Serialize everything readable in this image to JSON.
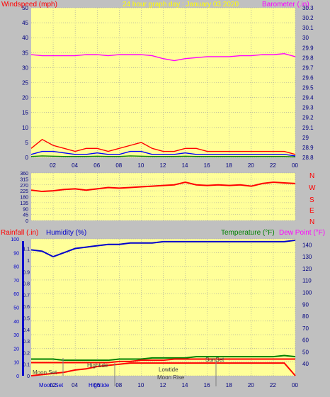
{
  "header": {
    "left_title": "Windspeed (mph)",
    "center_title": "24 hour graph day : January 03 2020",
    "right_title": "Barometer (.in)"
  },
  "wind_panel_labels": {
    "direction_letters": [
      "N",
      "W",
      "S",
      "E",
      "N"
    ]
  },
  "bottom_panel_titles": {
    "rainfall": "Rainfall (.in)",
    "humidity": "Humidity (%)",
    "temperature": "Temperature (°F)",
    "dewpoint": "Dew Point (°F)"
  },
  "event_labels": {
    "moon_set": "Moon Set",
    "hightide_1": "Hightide",
    "hightide_2": "Hightide",
    "lowtide": "Lowtide",
    "moon_rise": "Moon Rise",
    "sunset": "SunSet"
  },
  "colors": {
    "plot_bg": "#ffff99",
    "page_bg": "#c0c0c0",
    "wind": "#ff0000",
    "gust": "#0000ff",
    "green_series": "#008000",
    "barometer": "#ff00ff",
    "humidity": "#0000cc",
    "temperature": "#008000",
    "dewpoint": "#ff0000",
    "rain": "#ff0000",
    "title_accent": "#ffff00",
    "left_title": "#ff0000",
    "right_title": "#ff00ff"
  },
  "x_ticks": [
    "02",
    "04",
    "06",
    "08",
    "10",
    "12",
    "14",
    "16",
    "18",
    "20",
    "22",
    "00"
  ],
  "chart_data": [
    {
      "type": "line",
      "title": "24 hour graph day : January 03 2020",
      "ylabel": "Windspeed (mph)",
      "y2label": "Barometer (.in)",
      "ylim": [
        0,
        50
      ],
      "yticks": [
        0,
        5,
        10,
        15,
        20,
        25,
        30,
        35,
        40,
        45,
        50
      ],
      "y2lim": [
        28.8,
        30.3
      ],
      "y2ticks": [
        "28.8",
        "28.9",
        "29",
        "29.1",
        "29.2",
        "29.3",
        "29.4",
        "29.5",
        "29.6",
        "29.7",
        "29.8",
        "29.9",
        "30",
        "30.1",
        "30.2",
        "30.3"
      ],
      "x": [
        0,
        1,
        2,
        3,
        4,
        5,
        6,
        7,
        8,
        9,
        10,
        11,
        12,
        13,
        14,
        15,
        16,
        17,
        18,
        19,
        20,
        21,
        22,
        23,
        24
      ],
      "series": [
        {
          "values": [
            3,
            6,
            4,
            3,
            2,
            3,
            3,
            2,
            3,
            4,
            5,
            3,
            2,
            2,
            3,
            3,
            2,
            2,
            2,
            2,
            2,
            2,
            2,
            2,
            1
          ]
        },
        {
          "values": [
            1,
            2,
            2,
            1.5,
            1,
            1,
            1.5,
            1,
            1,
            2,
            2,
            1,
            1,
            1,
            1.5,
            1,
            1,
            1,
            1,
            1,
            1,
            1,
            1,
            1,
            0.5
          ]
        },
        {
          "values": [
            0.3,
            0.5,
            0.4,
            0.3,
            0.3,
            0.3,
            0.4,
            0.3,
            0.3,
            0.5,
            0.4,
            0.3,
            0.3,
            0.3,
            0.4,
            0.3,
            0.3,
            0.3,
            0.3,
            0.3,
            0.3,
            0.3,
            0.3,
            0.3,
            0.2
          ]
        },
        {
          "axis": "y2",
          "values": [
            29.83,
            29.82,
            29.82,
            29.82,
            29.82,
            29.83,
            29.83,
            29.82,
            29.83,
            29.83,
            29.83,
            29.82,
            29.79,
            29.77,
            29.79,
            29.8,
            29.81,
            29.81,
            29.81,
            29.82,
            29.82,
            29.83,
            29.83,
            29.84,
            29.81
          ]
        }
      ]
    },
    {
      "type": "scatter",
      "ylabel": "",
      "ylim": [
        0,
        360
      ],
      "yticks": [
        0,
        45,
        90,
        135,
        180,
        225,
        270,
        315,
        360
      ],
      "x": [
        0,
        1,
        2,
        3,
        4,
        5,
        6,
        7,
        8,
        9,
        10,
        11,
        12,
        13,
        14,
        15,
        16,
        17,
        18,
        19,
        20,
        21,
        22,
        23,
        24
      ],
      "series": [
        {
          "values": [
            230,
            220,
            225,
            235,
            240,
            230,
            240,
            250,
            245,
            250,
            255,
            260,
            265,
            270,
            290,
            270,
            265,
            270,
            265,
            270,
            260,
            280,
            290,
            285,
            280
          ]
        }
      ]
    },
    {
      "type": "line",
      "ylim": [
        0,
        100
      ],
      "yticks": [
        0,
        10,
        20,
        30,
        40,
        50,
        60,
        70,
        80,
        90,
        100
      ],
      "y_rain_ticks": [
        "0",
        "0.1",
        "0.2",
        "0.3",
        "0.4",
        "0.5",
        "0.6",
        "0.7",
        "0.8",
        "0.9",
        "1",
        "1.1"
      ],
      "y2lim": [
        30,
        145
      ],
      "y2ticks": [
        40,
        50,
        60,
        70,
        80,
        90,
        100,
        110,
        120,
        130,
        140
      ],
      "x": [
        0,
        1,
        2,
        3,
        4,
        5,
        6,
        7,
        8,
        9,
        10,
        11,
        12,
        13,
        14,
        15,
        16,
        17,
        18,
        19,
        20,
        21,
        22,
        23,
        24
      ],
      "series": [
        {
          "name": "Humidity (%)",
          "values": [
            92,
            91,
            87,
            90,
            93,
            94,
            95,
            96,
            96,
            97,
            97,
            97,
            98,
            98,
            98,
            98,
            98,
            98,
            98,
            98,
            98,
            98,
            98,
            98,
            99
          ]
        },
        {
          "name": "Temperature (°F)",
          "axis": "y2",
          "values": [
            44,
            44,
            44,
            43,
            43,
            43,
            43,
            43,
            44,
            44,
            44,
            45,
            45,
            45,
            45,
            46,
            46,
            46,
            46,
            46,
            46,
            46,
            46,
            47,
            46
          ]
        },
        {
          "name": "Dew Point (°F)",
          "axis": "y2",
          "values": [
            41,
            41,
            41,
            41,
            41,
            41,
            41,
            41,
            42,
            42,
            43,
            43,
            43,
            44,
            44,
            44,
            44,
            44,
            44,
            44,
            44,
            44,
            44,
            44,
            44
          ]
        },
        {
          "name": "Rainfall (.in)",
          "axis": "rain",
          "values": [
            0,
            0.01,
            0.02,
            0.03,
            0.05,
            0.06,
            0.08,
            0.09,
            0.1,
            0.11,
            0.11,
            0.11,
            0.11,
            0.11,
            0.11,
            0.11,
            0.11,
            0.11,
            0.11,
            0.11,
            0.11,
            0.11,
            0.11,
            0.11,
            0
          ]
        }
      ]
    }
  ]
}
